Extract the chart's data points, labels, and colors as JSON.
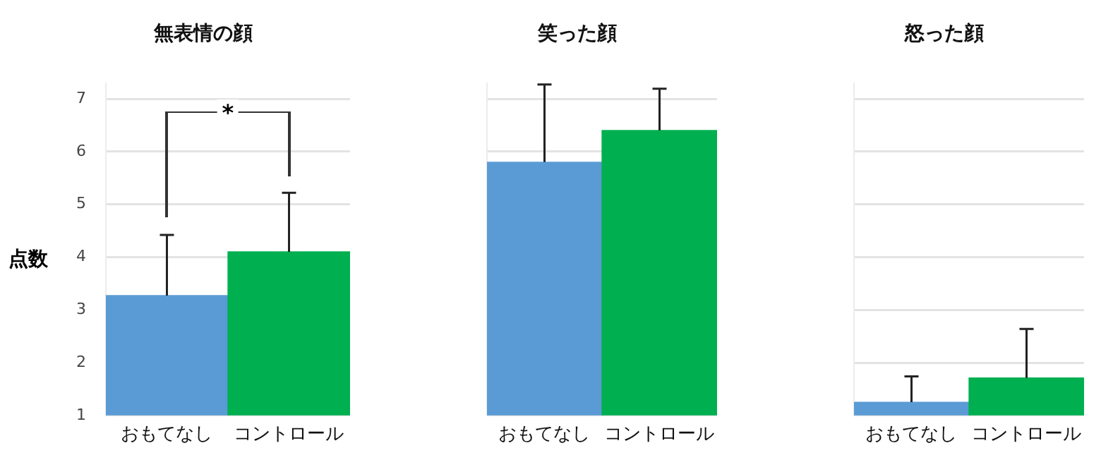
{
  "chart_data": [
    {
      "type": "bar",
      "title": "無表情の顔",
      "ylabel": "点数",
      "categories": [
        "おもてなし",
        "コントロール"
      ],
      "values": [
        3.27,
        4.1
      ],
      "colors": [
        "#5b9bd5",
        "#00b050"
      ],
      "errors": [
        [
          3.27,
          4.42
        ],
        [
          4.1,
          5.22
        ]
      ],
      "ylim": [
        1,
        7.3
      ],
      "yticks": [
        1,
        2,
        3,
        4,
        5,
        6,
        7
      ],
      "grid": "y",
      "annotations": [
        "*"
      ]
    },
    {
      "type": "bar",
      "title": "笑った顔",
      "categories": [
        "おもてなし",
        "コントロール"
      ],
      "values": [
        5.8,
        6.4
      ],
      "colors": [
        "#5b9bd5",
        "#00b050"
      ],
      "errors": [
        [
          5.8,
          7.27
        ],
        [
          6.4,
          7.19
        ]
      ],
      "ylim": [
        1,
        7.3
      ],
      "yticks": [
        1,
        2,
        3,
        4,
        5,
        6,
        7
      ],
      "grid": "y",
      "tick_labels": "x"
    },
    {
      "type": "bar",
      "title": "怒った顔",
      "categories": [
        "おもてなし",
        "コントロール"
      ],
      "values": [
        1.25,
        1.71
      ],
      "colors": [
        "#5b9bd5",
        "#00b050"
      ],
      "errors": [
        [
          1.25,
          1.74
        ],
        [
          1.71,
          2.64
        ]
      ],
      "ylim": [
        1,
        7.3
      ],
      "yticks": [
        1,
        2,
        3,
        4,
        5,
        6,
        7
      ],
      "grid": "y",
      "tick_labels": "x"
    }
  ]
}
